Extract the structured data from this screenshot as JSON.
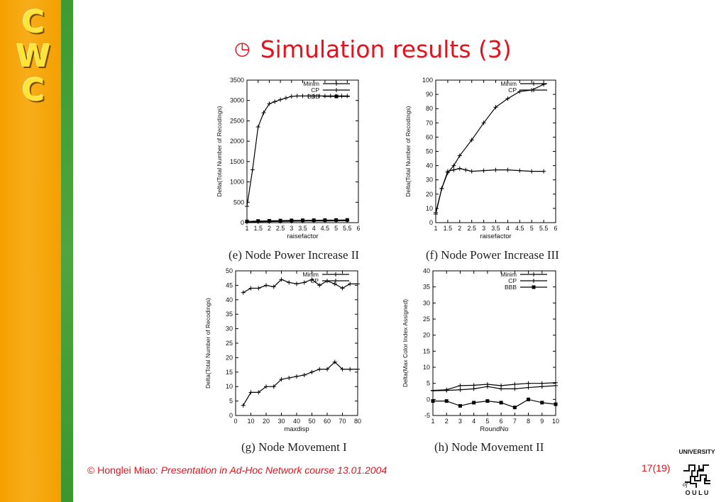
{
  "slide": {
    "title": "Simulation results (3)",
    "logo_letters": [
      "C",
      "W",
      "C"
    ],
    "footer_author": "© Honglei Miao:",
    "footer_text": "Presentation in Ad-Hoc Network course 13.01.2004",
    "page_number": "17(19)",
    "university_logo": {
      "top": "UNIVERSITY",
      "of": "of",
      "bottom": "O U L U"
    }
  },
  "chart_data": [
    {
      "id": "e",
      "type": "line",
      "caption": "(e) Node Power Increase II",
      "xlabel": "raisefactor",
      "ylabel": "Delta(Total Number of Recodings)",
      "xlim": [
        1,
        6
      ],
      "ylim": [
        0,
        3500
      ],
      "xticks": [
        1,
        1.5,
        2,
        2.5,
        3,
        3.5,
        4,
        4.5,
        5,
        5.5,
        6
      ],
      "xtick_labels": [
        "1",
        "1.5",
        "2",
        "2.5",
        "3",
        "3.5",
        "4",
        "4.5",
        "5",
        "5.5",
        "6"
      ],
      "yticks": [
        0,
        500,
        1000,
        1500,
        2000,
        2500,
        3000,
        3500
      ],
      "legend_position": "top-right",
      "series": [
        {
          "name": "Minim",
          "marker": "plus",
          "x": [
            1,
            1.25,
            1.5,
            1.75,
            2,
            2.25,
            2.5,
            2.75,
            3,
            3.25,
            3.5,
            3.75,
            4,
            4.25,
            4.5,
            4.75,
            5,
            5.25,
            5.5
          ],
          "y": [
            400,
            1300,
            2350,
            2700,
            2920,
            2970,
            3020,
            3060,
            3100,
            3110,
            3110,
            3110,
            3110,
            3110,
            3110,
            3110,
            3110,
            3110,
            3110
          ]
        },
        {
          "name": "CP",
          "marker": "plus",
          "x": [
            1,
            1.5,
            2,
            2.5,
            3,
            3.5,
            4,
            4.5,
            5,
            5.5
          ],
          "y": [
            10,
            20,
            25,
            30,
            35,
            38,
            40,
            42,
            44,
            46
          ]
        },
        {
          "name": "BBB",
          "marker": "square",
          "x": [
            1,
            1.5,
            2,
            2.5,
            3,
            3.5,
            4,
            4.5,
            5,
            5.5
          ],
          "y": [
            30,
            40,
            45,
            50,
            55,
            58,
            60,
            62,
            64,
            66
          ]
        }
      ]
    },
    {
      "id": "f",
      "type": "line",
      "caption": "(f) Node Power Increase III",
      "xlabel": "raisefactor",
      "ylabel": "Delta(Total Number of Recodings)",
      "xlim": [
        1,
        6
      ],
      "ylim": [
        0,
        100
      ],
      "xticks": [
        1,
        1.5,
        2,
        2.5,
        3,
        3.5,
        4,
        4.5,
        5,
        5.5,
        6
      ],
      "xtick_labels": [
        "1",
        "1.5",
        "2",
        "2.5",
        "3",
        "3.5",
        "4",
        "4.5",
        "5",
        "5.5",
        "6"
      ],
      "yticks": [
        0,
        10,
        20,
        30,
        40,
        50,
        60,
        70,
        80,
        90,
        100
      ],
      "legend_position": "top-right",
      "series": [
        {
          "name": "Minim",
          "marker": "plus",
          "x": [
            1,
            1.25,
            1.5,
            1.75,
            2,
            2.25,
            2.5,
            3,
            3.5,
            4,
            4.5,
            5,
            5.5
          ],
          "y": [
            7,
            24,
            36,
            37,
            38,
            37,
            36,
            36.5,
            37,
            37,
            36.5,
            36,
            36
          ]
        },
        {
          "name": "CP",
          "marker": "plus",
          "x": [
            1,
            1.25,
            1.5,
            1.75,
            2,
            2.5,
            3,
            3.5,
            4,
            4.5,
            5,
            5.5
          ],
          "y": [
            6,
            24,
            35,
            40,
            47,
            58,
            70,
            81,
            87,
            92,
            93,
            97
          ]
        }
      ]
    },
    {
      "id": "g",
      "type": "line",
      "caption": "(g) Node Movement I",
      "xlabel": "maxdisp",
      "ylabel": "Delta(Total Number of Recodings)",
      "xlim": [
        0,
        80
      ],
      "ylim": [
        0,
        50
      ],
      "xticks": [
        0,
        10,
        20,
        30,
        40,
        50,
        60,
        70,
        80
      ],
      "xtick_labels": [
        "0",
        "10",
        "20",
        "30",
        "40",
        "50",
        "60",
        "70",
        "80"
      ],
      "yticks": [
        0,
        5,
        10,
        15,
        20,
        25,
        30,
        35,
        40,
        45,
        50
      ],
      "legend_position": "top-right",
      "series": [
        {
          "name": "Minim",
          "marker": "plus",
          "x": [
            5,
            10,
            15,
            20,
            25,
            30,
            35,
            40,
            45,
            50,
            55,
            60,
            65,
            70,
            75,
            80
          ],
          "y": [
            3.5,
            8,
            8,
            10,
            10,
            12.5,
            13,
            13.5,
            14,
            15,
            16,
            16,
            18.5,
            16,
            16,
            16
          ]
        },
        {
          "name": "CP",
          "marker": "plus",
          "x": [
            5,
            10,
            15,
            20,
            25,
            30,
            35,
            40,
            45,
            50,
            55,
            60,
            65,
            70,
            75,
            80
          ],
          "y": [
            42.5,
            44,
            44,
            45,
            44.5,
            47,
            46,
            45.5,
            46,
            47,
            45,
            46.5,
            45.5,
            44,
            45.5,
            45.5
          ]
        }
      ]
    },
    {
      "id": "h",
      "type": "line",
      "caption": "(h) Node Movement II",
      "xlabel": "RoundNo",
      "ylabel": "Delta(Max Color Index Assigned)",
      "xlim": [
        1,
        10
      ],
      "ylim": [
        -5,
        40
      ],
      "xticks": [
        1,
        2,
        3,
        4,
        5,
        6,
        7,
        8,
        9,
        10
      ],
      "xtick_labels": [
        "1",
        "2",
        "3",
        "4",
        "5",
        "6",
        "7",
        "8",
        "9",
        "10"
      ],
      "yticks": [
        -5,
        0,
        5,
        10,
        15,
        20,
        25,
        30,
        35,
        40
      ],
      "legend_position": "top-right",
      "series": [
        {
          "name": "Minim",
          "marker": "plus",
          "x": [
            1,
            2,
            3,
            4,
            5,
            6,
            7,
            8,
            9,
            10
          ],
          "y": [
            2.8,
            3,
            4.3,
            4.4,
            4.7,
            4.3,
            4.7,
            5,
            5,
            5.2
          ]
        },
        {
          "name": "CP",
          "marker": "plus",
          "x": [
            1,
            2,
            3,
            4,
            5,
            6,
            7,
            8,
            9,
            10
          ],
          "y": [
            2.7,
            2.8,
            3,
            3.3,
            4,
            3.3,
            3.3,
            3.7,
            4,
            4.3
          ]
        },
        {
          "name": "BBB",
          "marker": "square",
          "x": [
            1,
            2,
            3,
            4,
            5,
            6,
            7,
            8,
            9,
            10
          ],
          "y": [
            -0.5,
            -0.5,
            -2,
            -1,
            -0.5,
            -1,
            -2.5,
            0,
            -1,
            -1.5
          ]
        }
      ]
    }
  ]
}
